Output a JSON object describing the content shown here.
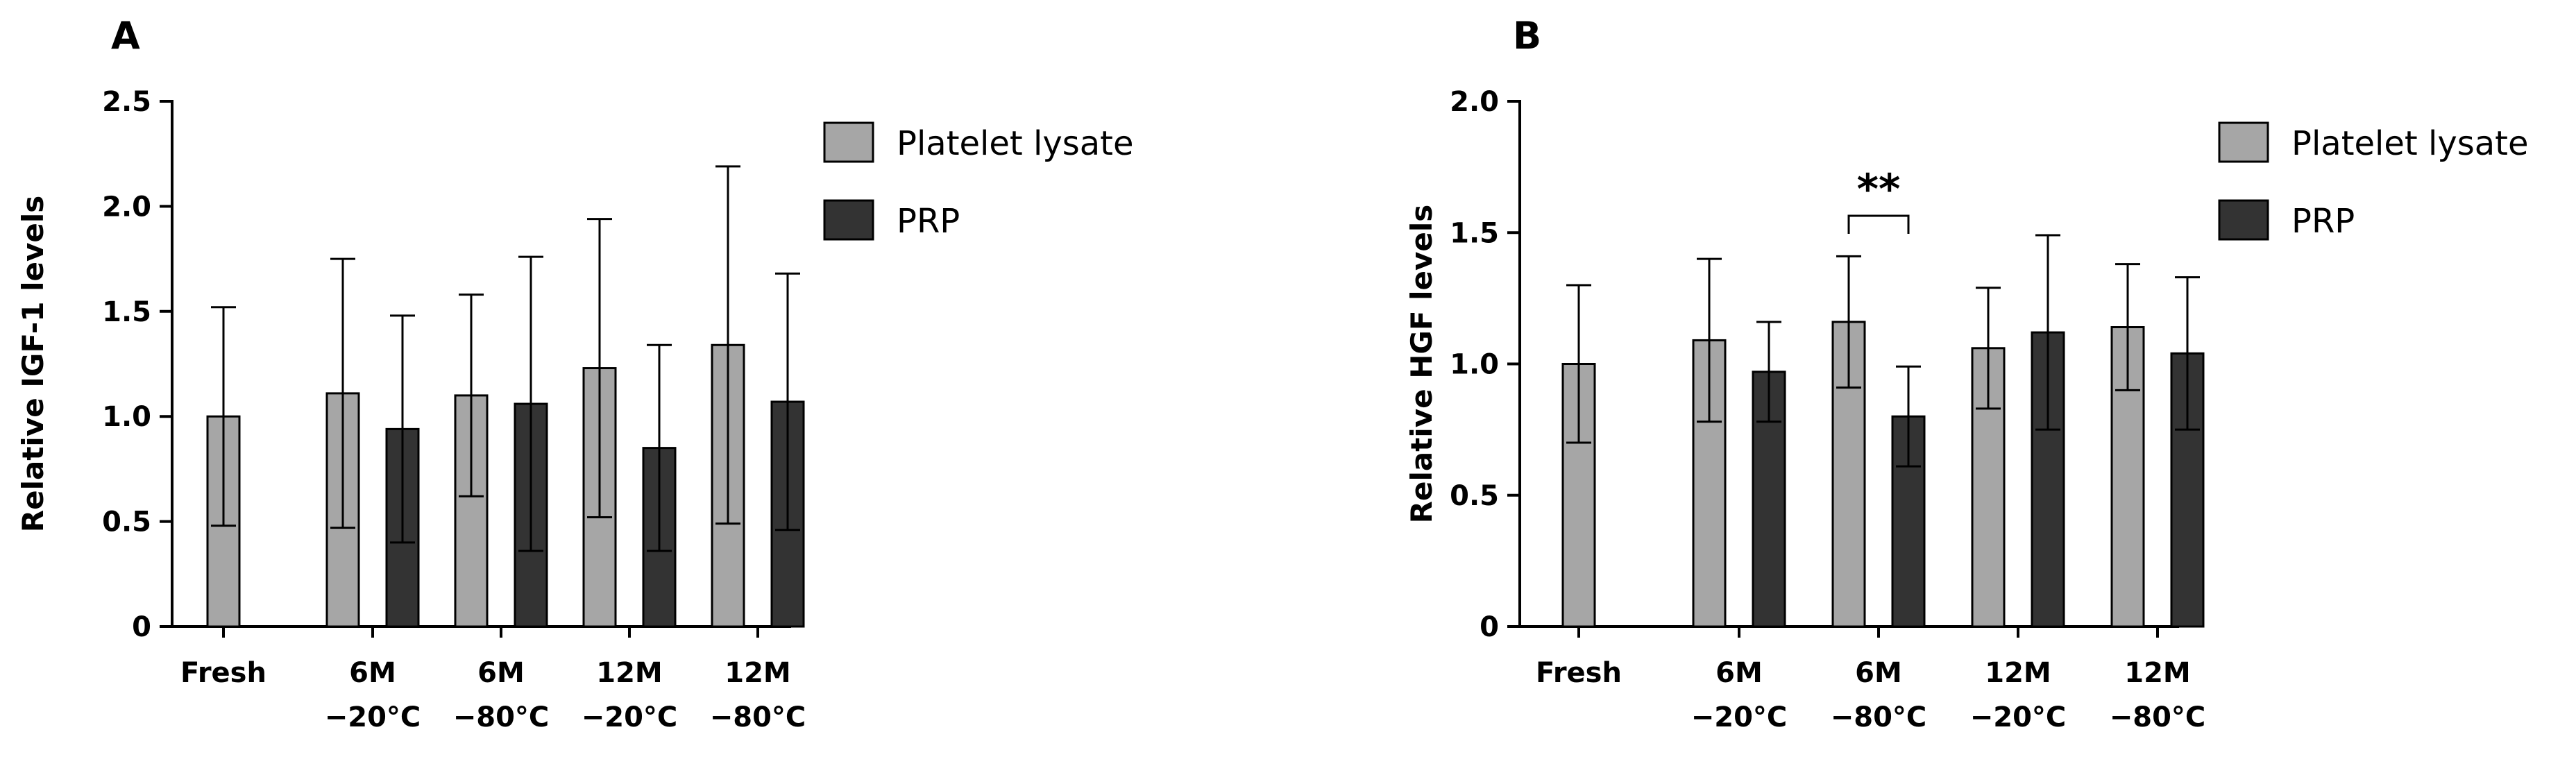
{
  "colors": {
    "platelet_lysate": "#a6a6a6",
    "prp": "#333333",
    "axis": "#000000"
  },
  "chart_data": [
    {
      "type": "bar",
      "panel": "A",
      "ylabel": "Relative IGF-1 levels",
      "ylim": [
        0,
        2.5
      ],
      "yticks": [
        "0",
        "0.5",
        "1.0",
        "1.5",
        "2.0",
        "2.5"
      ],
      "yticks_values": [
        0,
        0.5,
        1.0,
        1.5,
        2.0,
        2.5
      ],
      "categories": [
        [
          "Fresh"
        ],
        [
          "6M",
          "−20°C"
        ],
        [
          "6M",
          "−80°C"
        ],
        [
          "12M",
          "−20°C"
        ],
        [
          "12M",
          "−80°C"
        ]
      ],
      "legend": "right",
      "series": [
        {
          "name": "Platelet lysate",
          "color_key": "platelet_lysate",
          "values": [
            1.0,
            1.11,
            1.1,
            1.23,
            1.34
          ],
          "error": [
            0.52,
            0.64,
            0.48,
            0.71,
            0.85
          ]
        },
        {
          "name": "PRP",
          "color_key": "prp",
          "values": [
            null,
            0.94,
            1.06,
            0.85,
            1.07
          ],
          "error": [
            null,
            0.54,
            0.7,
            0.49,
            0.61
          ]
        }
      ],
      "annotations": []
    },
    {
      "type": "bar",
      "panel": "B",
      "ylabel": "Relative HGF levels",
      "ylim": [
        0,
        2.0
      ],
      "yticks": [
        "0",
        "0.5",
        "1.0",
        "1.5",
        "2.0"
      ],
      "yticks_values": [
        0,
        0.5,
        1.0,
        1.5,
        2.0
      ],
      "categories": [
        [
          "Fresh"
        ],
        [
          "6M",
          "−20°C"
        ],
        [
          "6M",
          "−80°C"
        ],
        [
          "12M",
          "−20°C"
        ],
        [
          "12M",
          "−80°C"
        ]
      ],
      "legend": "right",
      "series": [
        {
          "name": "Platelet lysate",
          "color_key": "platelet_lysate",
          "values": [
            1.0,
            1.09,
            1.16,
            1.06,
            1.14
          ],
          "error": [
            0.3,
            0.31,
            0.25,
            0.23,
            0.24
          ]
        },
        {
          "name": "PRP",
          "color_key": "prp",
          "values": [
            null,
            0.97,
            0.8,
            1.12,
            1.04
          ],
          "error": [
            null,
            0.19,
            0.19,
            0.37,
            0.29
          ]
        }
      ],
      "annotations": [
        {
          "category_index": 2,
          "text": "**"
        }
      ]
    }
  ]
}
